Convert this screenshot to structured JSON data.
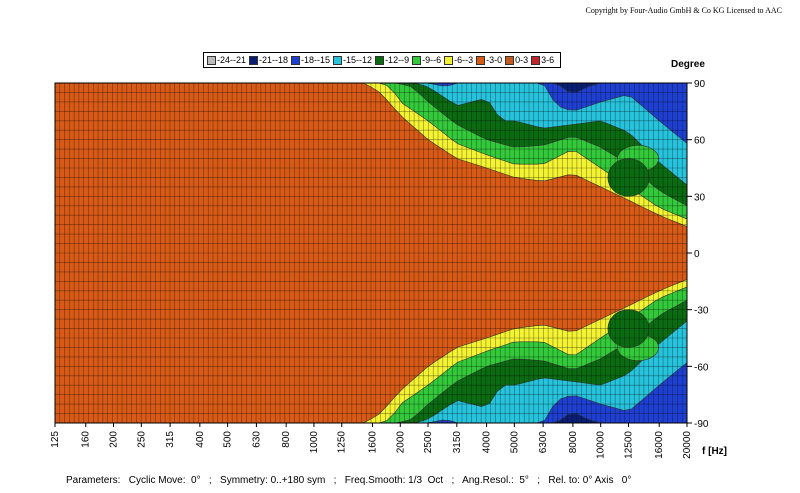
{
  "header": {
    "copyright": "Copyright by Four-Audio GmbH & Co KG   Licensed to AAC"
  },
  "legend": [
    {
      "label": "-24--21",
      "color": "#bcbcbc"
    },
    {
      "label": "-21--18",
      "color": "#0a1f73"
    },
    {
      "label": "-18--15",
      "color": "#1f3fd1"
    },
    {
      "label": "-15--12",
      "color": "#27c3dc"
    },
    {
      "label": "-12--9",
      "color": "#0b6b12"
    },
    {
      "label": "-9--6",
      "color": "#33c93a"
    },
    {
      "label": "-6--3",
      "color": "#f3f233"
    },
    {
      "label": "-3-0",
      "color": "#d75a17"
    },
    {
      "label": "0-3",
      "color": "#c35a1f"
    },
    {
      "label": "3-6",
      "color": "#c0262b"
    }
  ],
  "footer": {
    "parameters": "Parameters:   Cyclic Move:  0°   ;   Symmetry: 0..+180 sym   ;   Freq.Smooth: 1/3  Oct   ;   Ang.Resol.:  5°   ;   Rel. to: 0° Axis   0°"
  },
  "chart_data": {
    "type": "heatmap",
    "title": "",
    "xlabel": "f [Hz]",
    "ylabel": "Degree",
    "x_scale": "log",
    "xlim": [
      125,
      20000
    ],
    "ylim": [
      -90,
      90
    ],
    "x_ticks": [
      "125",
      "160",
      "200",
      "250",
      "315",
      "400",
      "500",
      "630",
      "800",
      "1000",
      "1250",
      "1600",
      "2000",
      "2500",
      "3150",
      "4000",
      "5000",
      "6300",
      "8000",
      "10000",
      "12500",
      "16000",
      "20000"
    ],
    "y_ticks": [
      90,
      60,
      30,
      0,
      -30,
      -60,
      -90
    ],
    "grid": true,
    "symmetric": true,
    "z_unit": "dB",
    "levels": [
      -24,
      -21,
      -18,
      -15,
      -12,
      -9,
      -6,
      -3,
      0,
      3,
      6
    ],
    "contours": [
      {
        "label": "-6--3",
        "half_width_deg": [
          [
            125,
            90
          ],
          [
            1500,
            90
          ],
          [
            1700,
            85
          ],
          [
            2000,
            73
          ],
          [
            2500,
            60
          ],
          [
            3150,
            50
          ],
          [
            4000,
            45
          ],
          [
            5000,
            40
          ],
          [
            6300,
            38
          ],
          [
            8000,
            42
          ],
          [
            10000,
            35
          ],
          [
            12500,
            28
          ],
          [
            16000,
            20
          ],
          [
            20000,
            14
          ]
        ]
      },
      {
        "label": "-9--6",
        "half_width_deg": [
          [
            125,
            90
          ],
          [
            1700,
            90
          ],
          [
            1850,
            88
          ],
          [
            2000,
            80
          ],
          [
            2500,
            70
          ],
          [
            3150,
            58
          ],
          [
            4000,
            52
          ],
          [
            5000,
            47
          ],
          [
            6300,
            47
          ],
          [
            8000,
            55
          ],
          [
            10000,
            45
          ],
          [
            12500,
            35
          ],
          [
            16000,
            24
          ],
          [
            20000,
            18
          ]
        ]
      },
      {
        "label": "-12--9",
        "half_width_deg": [
          [
            125,
            90
          ],
          [
            1950,
            90
          ],
          [
            2200,
            88
          ],
          [
            2500,
            80
          ],
          [
            3150,
            68
          ],
          [
            4000,
            60
          ],
          [
            5000,
            56
          ],
          [
            6300,
            57
          ],
          [
            8000,
            62
          ],
          [
            10000,
            56
          ],
          [
            12500,
            47
          ],
          [
            16000,
            33
          ],
          [
            20000,
            25
          ]
        ]
      },
      {
        "label": "-15--12",
        "half_width_deg": [
          [
            125,
            90
          ],
          [
            2250,
            90
          ],
          [
            2500,
            88
          ],
          [
            3150,
            78
          ],
          [
            4000,
            82
          ],
          [
            4500,
            70
          ],
          [
            5000,
            70
          ],
          [
            6300,
            66
          ],
          [
            8000,
            68
          ],
          [
            10000,
            70
          ],
          [
            12500,
            64
          ],
          [
            16000,
            48
          ],
          [
            20000,
            36
          ]
        ]
      },
      {
        "label": "-18--15",
        "half_width_deg": [
          [
            125,
            90
          ],
          [
            2500,
            90
          ],
          [
            2900,
            88
          ],
          [
            3150,
            90
          ],
          [
            6300,
            90
          ],
          [
            7000,
            78
          ],
          [
            8000,
            75
          ],
          [
            10000,
            80
          ],
          [
            12500,
            84
          ],
          [
            16000,
            70
          ],
          [
            20000,
            58
          ]
        ]
      },
      {
        "label": "-21--18",
        "half_width_deg": [
          [
            125,
            90
          ],
          [
            7000,
            90
          ],
          [
            7600,
            86
          ],
          [
            8000,
            84
          ],
          [
            9000,
            88
          ],
          [
            10000,
            90
          ],
          [
            20000,
            90
          ]
        ]
      }
    ],
    "pockets": [
      {
        "label": "-9--6",
        "center": [
          13500,
          50
        ],
        "size_deg": 14
      },
      {
        "label": "-9--6",
        "center": [
          13500,
          -50
        ],
        "size_deg": 14
      },
      {
        "label": "-12--9",
        "center": [
          12500,
          40
        ],
        "size_deg": 20
      },
      {
        "label": "-12--9",
        "center": [
          12500,
          -40
        ],
        "size_deg": 20
      }
    ]
  },
  "axis_labels": {
    "x": "f [Hz]",
    "y": "Degree"
  }
}
